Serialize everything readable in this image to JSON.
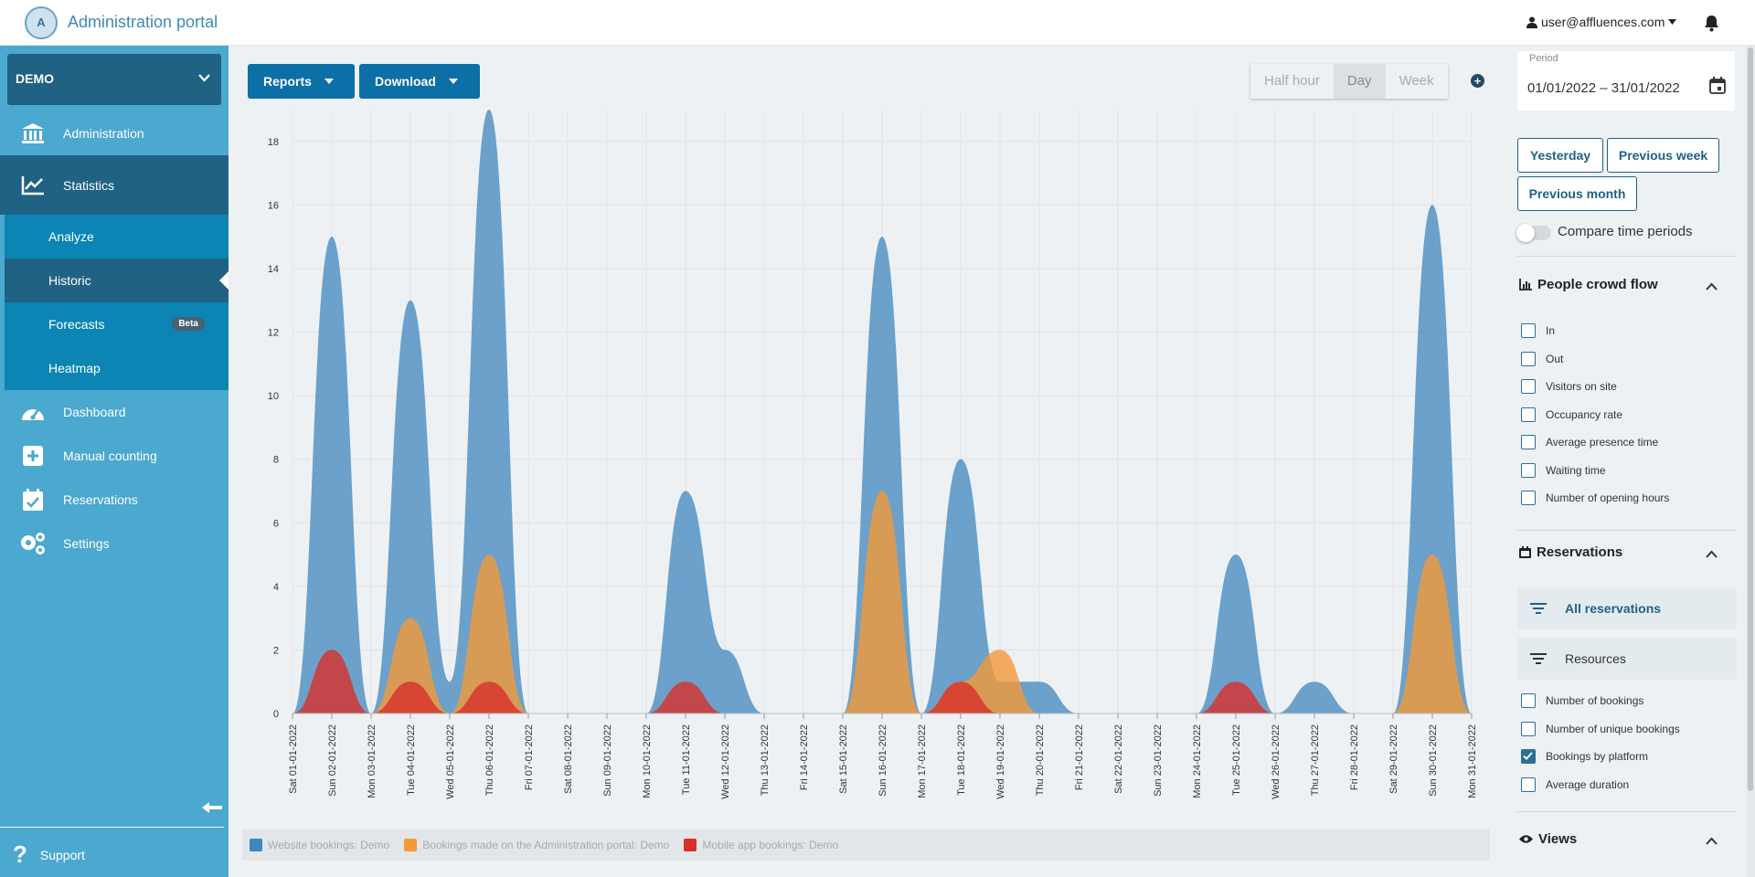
{
  "header": {
    "logo_text": "A",
    "app_title": "Administration portal",
    "user": "user@affluences.com"
  },
  "sidebar": {
    "site": "DEMO",
    "items": [
      {
        "label": "Administration",
        "icon": "bank-icon"
      },
      {
        "label": "Statistics",
        "icon": "chart-line-icon"
      },
      {
        "label": "Dashboard",
        "icon": "gauge-icon"
      },
      {
        "label": "Manual counting",
        "icon": "plus-square-icon"
      },
      {
        "label": "Reservations",
        "icon": "calendar-check-icon"
      },
      {
        "label": "Settings",
        "icon": "gears-icon"
      }
    ],
    "stats_sub": [
      {
        "label": "Analyze"
      },
      {
        "label": "Historic"
      },
      {
        "label": "Forecasts",
        "badge": "Beta"
      },
      {
        "label": "Heatmap"
      }
    ],
    "support": "Support"
  },
  "toolbar": {
    "reports": "Reports",
    "download": "Download",
    "granularity": [
      "Half hour",
      "Day",
      "Week"
    ],
    "granularity_selected": "Day",
    "add": "+"
  },
  "right_panel": {
    "period_label": "Period",
    "period_value": "01/01/2022 – 31/01/2022",
    "quick_buttons": [
      "Yesterday",
      "Previous week",
      "Previous month"
    ],
    "compare_label": "Compare time periods",
    "compare_on": false,
    "crowd_flow": {
      "title": "People crowd flow",
      "options": [
        "In",
        "Out",
        "Visitors on site",
        "Occupancy rate",
        "Average presence time",
        "Waiting time",
        "Number of opening hours"
      ]
    },
    "reservations": {
      "title": "Reservations",
      "filters": [
        "All reservations",
        "Resources"
      ],
      "options": [
        {
          "label": "Number of bookings",
          "checked": false
        },
        {
          "label": "Number of unique bookings",
          "checked": false
        },
        {
          "label": "Bookings by platform",
          "checked": true
        },
        {
          "label": "Average duration",
          "checked": false
        }
      ]
    },
    "views_title": "Views"
  },
  "chart_data": {
    "type": "area",
    "categories": [
      "Sat 01-01-2022",
      "Sun 02-01-2022",
      "Mon 03-01-2022",
      "Tue 04-01-2022",
      "Wed 05-01-2022",
      "Thu 06-01-2022",
      "Fri 07-01-2022",
      "Sat 08-01-2022",
      "Sun 09-01-2022",
      "Mon 10-01-2022",
      "Tue 11-01-2022",
      "Wed 12-01-2022",
      "Thu 13-01-2022",
      "Fri 14-01-2022",
      "Sat 15-01-2022",
      "Sun 16-01-2022",
      "Mon 17-01-2022",
      "Tue 18-01-2022",
      "Wed 19-01-2022",
      "Thu 20-01-2022",
      "Fri 21-01-2022",
      "Sat 22-01-2022",
      "Sun 23-01-2022",
      "Mon 24-01-2022",
      "Tue 25-01-2022",
      "Wed 26-01-2022",
      "Thu 27-01-2022",
      "Fri 28-01-2022",
      "Sat 29-01-2022",
      "Sun 30-01-2022",
      "Mon 31-01-2022"
    ],
    "series": [
      {
        "name": "Website bookings: Demo",
        "color": "#3f86be",
        "values": [
          0,
          15,
          0,
          13,
          1,
          19,
          0,
          0,
          0,
          0,
          7,
          2,
          0,
          0,
          0,
          15,
          0,
          8,
          1,
          1,
          0,
          0,
          0,
          0,
          5,
          0,
          1,
          0,
          0,
          16,
          0
        ]
      },
      {
        "name": "Bookings made on the Administration portal: Demo",
        "color": "#f39a38",
        "values": [
          0,
          0,
          0,
          3,
          0,
          5,
          0,
          0,
          0,
          0,
          0,
          0,
          0,
          0,
          0,
          7,
          0,
          1,
          2,
          0,
          0,
          0,
          0,
          0,
          0,
          0,
          0,
          0,
          0,
          5,
          0
        ]
      },
      {
        "name": "Mobile app bookings: Demo",
        "color": "#d9302b",
        "values": [
          0,
          2,
          0,
          1,
          0,
          1,
          0,
          0,
          0,
          0,
          1,
          0,
          0,
          0,
          0,
          0,
          0,
          1,
          0,
          0,
          0,
          0,
          0,
          0,
          1,
          0,
          0,
          0,
          0,
          0,
          0
        ]
      }
    ],
    "yticks": [
      0,
      2,
      4,
      6,
      8,
      10,
      12,
      14,
      16,
      18
    ],
    "ylim": [
      0,
      19
    ],
    "grid": true,
    "legend_position": "bottom"
  }
}
